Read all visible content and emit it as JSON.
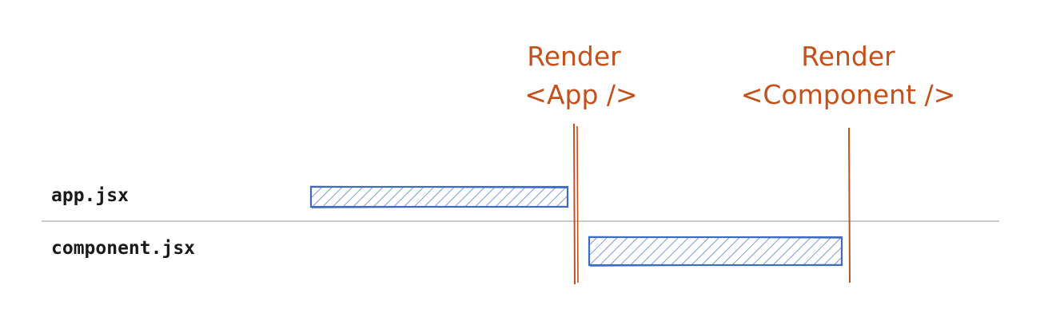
{
  "rows": [
    {
      "label": "app.jsx"
    },
    {
      "label": "component.jsx"
    }
  ],
  "markers": [
    {
      "line1": "Render",
      "line2": "<App />"
    },
    {
      "line1": "Render",
      "line2": "<Component />"
    }
  ],
  "colors": {
    "bar_stroke": "#3f6bbf",
    "bar_hatch": "#5b82cc",
    "marker": "#c4501b",
    "divider": "#cccccc",
    "text": "#1a1a1a"
  }
}
